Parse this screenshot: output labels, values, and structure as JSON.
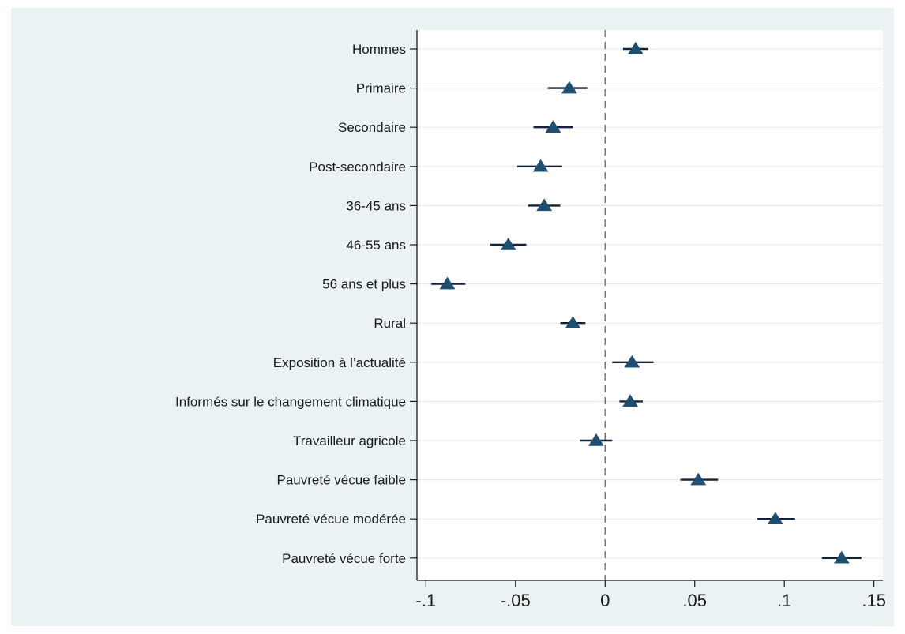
{
  "chart_data": {
    "type": "scatter",
    "title": "",
    "xlabel": "",
    "ylabel": "",
    "xlim": [
      -0.105,
      0.155
    ],
    "xticks": [
      -0.1,
      -0.05,
      0,
      0.05,
      0.1,
      0.15
    ],
    "xtick_labels": [
      "-.1",
      "-.05",
      "0",
      ".05",
      ".1",
      ".15"
    ],
    "reference_line": {
      "x": 0,
      "style": "dashed"
    },
    "marker": "triangle",
    "marker_color": "#1f4e73",
    "grid": "horizontal",
    "categories": [
      "Hommes",
      "Primaire",
      "Secondaire",
      "Post-secondaire",
      "36-45 ans",
      "46-55 ans",
      "56 ans et plus",
      "Rural",
      "Exposition à l’actualité",
      "Informés sur le changement climatique",
      "Travailleur agricole",
      "Pauvreté vécue faible",
      "Pauvreté vécue modérée",
      "Pauvreté vécue forte"
    ],
    "estimates": [
      0.017,
      -0.02,
      -0.029,
      -0.036,
      -0.034,
      -0.054,
      -0.088,
      -0.018,
      0.015,
      0.014,
      -0.005,
      0.052,
      0.095,
      0.132
    ],
    "ci_low": [
      0.01,
      -0.032,
      -0.04,
      -0.049,
      -0.043,
      -0.064,
      -0.097,
      -0.025,
      0.004,
      0.008,
      -0.014,
      0.042,
      0.085,
      0.121
    ],
    "ci_high": [
      0.024,
      -0.01,
      -0.018,
      -0.024,
      -0.025,
      -0.044,
      -0.078,
      -0.011,
      0.027,
      0.021,
      0.004,
      0.063,
      0.106,
      0.143
    ]
  }
}
